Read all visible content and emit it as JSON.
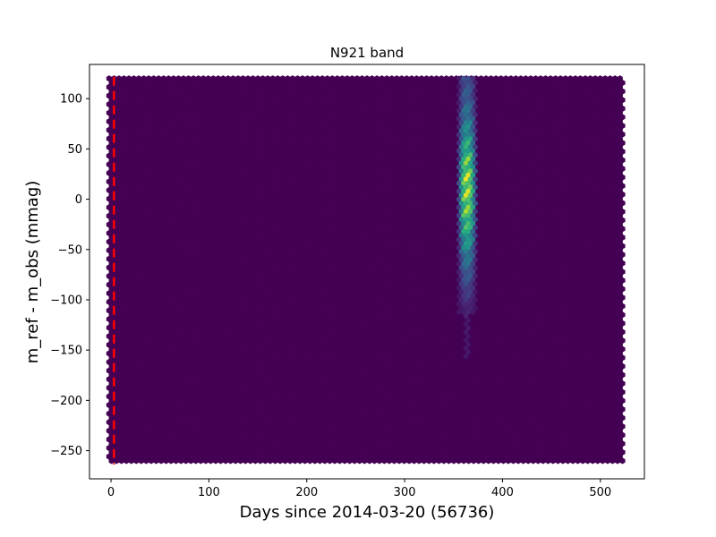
{
  "chart_data": {
    "type": "heatmap",
    "title": "N921 band",
    "xlabel": "Days since 2014-03-20 (56736)",
    "ylabel": "m_ref - m_obs (mmag)",
    "xlim": [
      -22,
      545
    ],
    "ylim": [
      -278,
      134
    ],
    "xticks": [
      0,
      100,
      200,
      300,
      400,
      500
    ],
    "yticks": [
      100,
      50,
      0,
      -50,
      -100,
      -150,
      -200,
      -250
    ],
    "grid": false,
    "colormap": "viridis",
    "background_color": "#440154",
    "hexbin_extent": {
      "x": [
        -2,
        523
      ],
      "y": [
        -262,
        120
      ]
    },
    "reference_line": {
      "x": 3,
      "color": "#ff0000",
      "style": "dashed"
    },
    "density_column": {
      "x_center": 364,
      "x_range": [
        355,
        372
      ],
      "y_range": [
        -165,
        120
      ],
      "profile": [
        {
          "y": 120,
          "value": 0.3
        },
        {
          "y": 110,
          "value": 0.32
        },
        {
          "y": 100,
          "value": 0.36
        },
        {
          "y": 90,
          "value": 0.42
        },
        {
          "y": 80,
          "value": 0.48
        },
        {
          "y": 70,
          "value": 0.56
        },
        {
          "y": 60,
          "value": 0.66
        },
        {
          "y": 50,
          "value": 0.76
        },
        {
          "y": 40,
          "value": 0.86
        },
        {
          "y": 30,
          "value": 0.94
        },
        {
          "y": 20,
          "value": 1.0
        },
        {
          "y": 10,
          "value": 1.0
        },
        {
          "y": 0,
          "value": 0.97
        },
        {
          "y": -10,
          "value": 0.92
        },
        {
          "y": -20,
          "value": 0.85
        },
        {
          "y": -30,
          "value": 0.76
        },
        {
          "y": -40,
          "value": 0.66
        },
        {
          "y": -50,
          "value": 0.56
        },
        {
          "y": -60,
          "value": 0.46
        },
        {
          "y": -70,
          "value": 0.38
        },
        {
          "y": -80,
          "value": 0.3
        },
        {
          "y": -90,
          "value": 0.24
        },
        {
          "y": -100,
          "value": 0.18
        },
        {
          "y": -110,
          "value": 0.12
        },
        {
          "y": -120,
          "value": 0.08
        },
        {
          "y": -140,
          "value": 0.06
        },
        {
          "y": -160,
          "value": 0.04
        }
      ]
    }
  }
}
